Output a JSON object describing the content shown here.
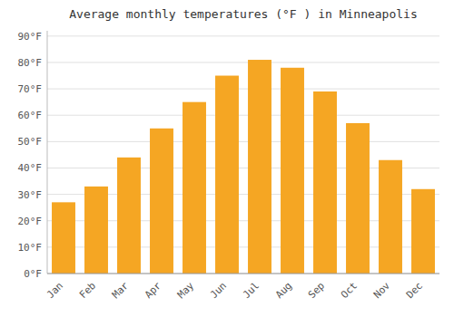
{
  "chart_data": {
    "type": "bar",
    "title": "Average monthly temperatures (°F ) in Minneapolis",
    "categories": [
      "Jan",
      "Feb",
      "Mar",
      "Apr",
      "May",
      "Jun",
      "Jul",
      "Aug",
      "Sep",
      "Oct",
      "Nov",
      "Dec"
    ],
    "values": [
      27,
      33,
      44,
      55,
      65,
      75,
      81,
      78,
      69,
      57,
      43,
      32
    ],
    "color": "#F5A623",
    "ylim": [
      0,
      92
    ],
    "yticks": [
      {
        "value": 0,
        "label": "0°F"
      },
      {
        "value": 10,
        "label": "10°F"
      },
      {
        "value": 20,
        "label": "20°F"
      },
      {
        "value": 30,
        "label": "30°F"
      },
      {
        "value": 40,
        "label": "40°F"
      },
      {
        "value": 50,
        "label": "50°F"
      },
      {
        "value": 60,
        "label": "60°F"
      },
      {
        "value": 70,
        "label": "70°F"
      },
      {
        "value": 80,
        "label": "80°F"
      },
      {
        "value": 90,
        "label": "90°F"
      }
    ],
    "grid": true
  }
}
